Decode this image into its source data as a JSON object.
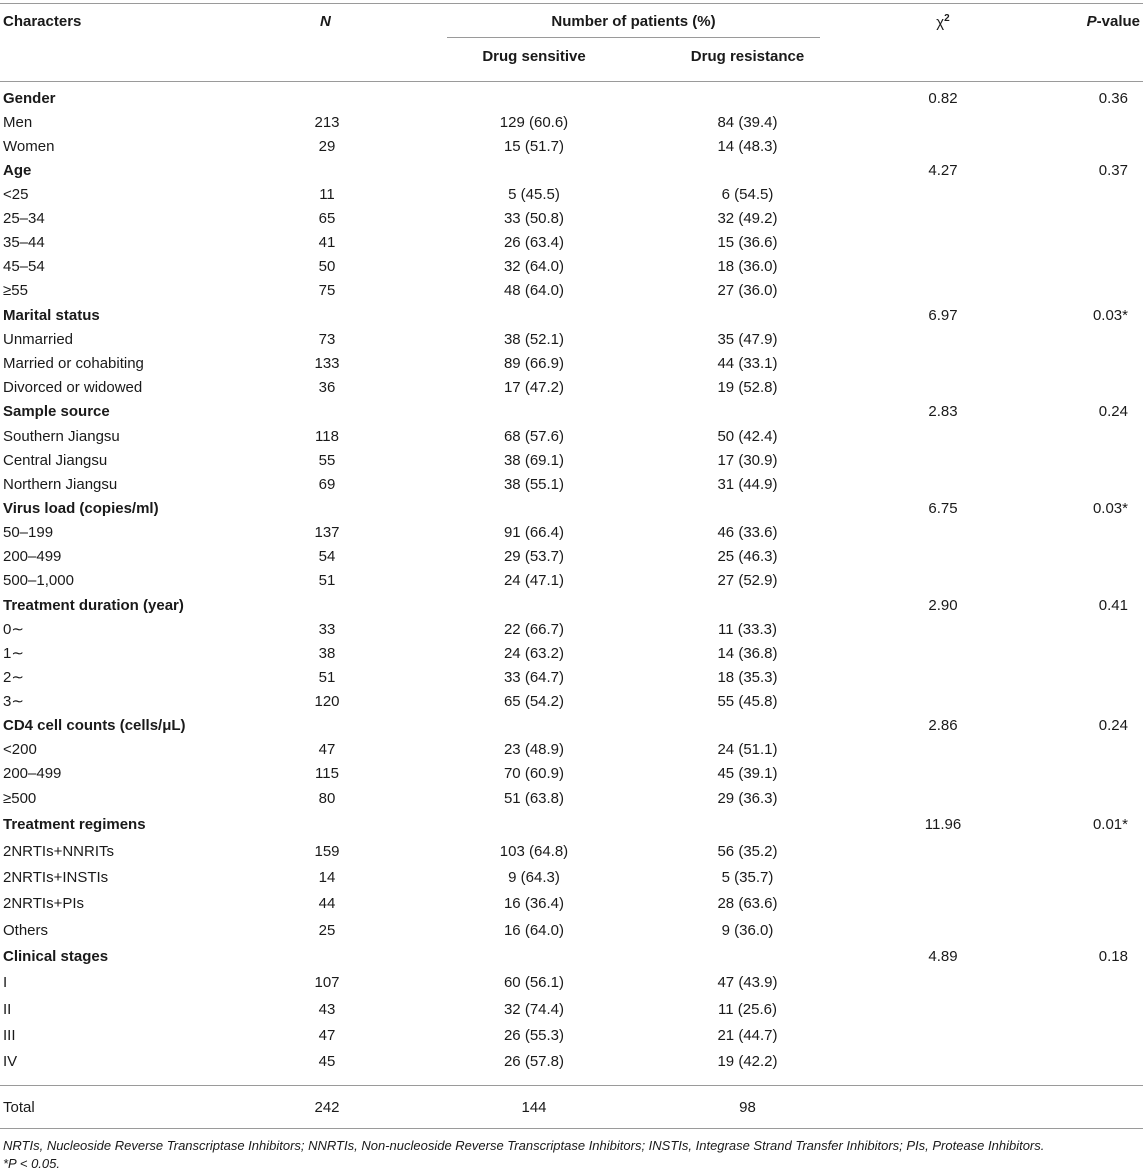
{
  "header": {
    "characters": "Characters",
    "n": "N",
    "group": "Number of patients (%)",
    "sensitive": "Drug sensitive",
    "resistance": "Drug resistance",
    "chi": "χ",
    "chi_sup": "2",
    "pvalue_italic": "P",
    "pvalue_rest": "-value"
  },
  "rows": [
    {
      "type": "group",
      "label": "Gender",
      "n": "",
      "sens": "",
      "res": "",
      "chi": "0.82",
      "p": "0.36"
    },
    {
      "type": "item",
      "label": "Men",
      "n": "213",
      "sens": "129 (60.6)",
      "res": "84 (39.4)",
      "chi": "",
      "p": ""
    },
    {
      "type": "item",
      "label": "Women",
      "n": "29",
      "sens": "15 (51.7)",
      "res": "14 (48.3)",
      "chi": "",
      "p": ""
    },
    {
      "type": "group",
      "label": "Age",
      "n": "",
      "sens": "",
      "res": "",
      "chi": "4.27",
      "p": "0.37"
    },
    {
      "type": "item",
      "label": "<25",
      "n": "11",
      "sens": "5 (45.5)",
      "res": "6 (54.5)",
      "chi": "",
      "p": ""
    },
    {
      "type": "item",
      "label": "25–34",
      "n": "65",
      "sens": "33 (50.8)",
      "res": "32 (49.2)",
      "chi": "",
      "p": ""
    },
    {
      "type": "item",
      "label": "35–44",
      "n": "41",
      "sens": "26 (63.4)",
      "res": "15 (36.6)",
      "chi": "",
      "p": ""
    },
    {
      "type": "item",
      "label": "45–54",
      "n": "50",
      "sens": "32 (64.0)",
      "res": "18 (36.0)",
      "chi": "",
      "p": ""
    },
    {
      "type": "item",
      "label": "≥55",
      "n": "75",
      "sens": "48 (64.0)",
      "res": "27 (36.0)",
      "chi": "",
      "p": ""
    },
    {
      "type": "group",
      "label": "Marital status",
      "n": "",
      "sens": "",
      "res": "",
      "chi": "6.97",
      "p": "0.03*"
    },
    {
      "type": "item",
      "label": "Unmarried",
      "n": "73",
      "sens": "38 (52.1)",
      "res": "35 (47.9)",
      "chi": "",
      "p": ""
    },
    {
      "type": "item",
      "label": "Married or cohabiting",
      "n": "133",
      "sens": "89 (66.9)",
      "res": "44 (33.1)",
      "chi": "",
      "p": ""
    },
    {
      "type": "item",
      "label": "Divorced or widowed",
      "n": "36",
      "sens": "17 (47.2)",
      "res": "19 (52.8)",
      "chi": "",
      "p": ""
    },
    {
      "type": "group",
      "label": "Sample source",
      "n": "",
      "sens": "",
      "res": "",
      "chi": "2.83",
      "p": "0.24"
    },
    {
      "type": "item",
      "label": "Southern Jiangsu",
      "n": "118",
      "sens": "68 (57.6)",
      "res": "50 (42.4)",
      "chi": "",
      "p": ""
    },
    {
      "type": "item",
      "label": "Central Jiangsu",
      "n": "55",
      "sens": "38 (69.1)",
      "res": "17 (30.9)",
      "chi": "",
      "p": ""
    },
    {
      "type": "item",
      "label": "Northern Jiangsu",
      "n": "69",
      "sens": "38 (55.1)",
      "res": "31 (44.9)",
      "chi": "",
      "p": ""
    },
    {
      "type": "group",
      "label": "Virus load (copies/ml)",
      "n": "",
      "sens": "",
      "res": "",
      "chi": "6.75",
      "p": "0.03*"
    },
    {
      "type": "item",
      "label": "50–199",
      "n": "137",
      "sens": "91 (66.4)",
      "res": "46 (33.6)",
      "chi": "",
      "p": ""
    },
    {
      "type": "item",
      "label": "200–499",
      "n": "54",
      "sens": "29 (53.7)",
      "res": "25 (46.3)",
      "chi": "",
      "p": ""
    },
    {
      "type": "item",
      "label": "500–1,000",
      "n": "51",
      "sens": "24 (47.1)",
      "res": "27 (52.9)",
      "chi": "",
      "p": ""
    },
    {
      "type": "group",
      "label": "Treatment duration (year)",
      "n": "",
      "sens": "",
      "res": "",
      "chi": "2.90",
      "p": "0.41"
    },
    {
      "type": "item",
      "label": "0∼",
      "n": "33",
      "sens": "22 (66.7)",
      "res": "11 (33.3)",
      "chi": "",
      "p": ""
    },
    {
      "type": "item",
      "label": "1∼",
      "n": "38",
      "sens": "24 (63.2)",
      "res": "14 (36.8)",
      "chi": "",
      "p": ""
    },
    {
      "type": "item",
      "label": "2∼",
      "n": "51",
      "sens": "33 (64.7)",
      "res": "18 (35.3)",
      "chi": "",
      "p": ""
    },
    {
      "type": "item",
      "label": "3∼",
      "n": "120",
      "sens": "65 (54.2)",
      "res": "55 (45.8)",
      "chi": "",
      "p": ""
    },
    {
      "type": "group",
      "label": "CD4 cell counts (cells/μL)",
      "n": "",
      "sens": "",
      "res": "",
      "chi": "2.86",
      "p": "0.24"
    },
    {
      "type": "item",
      "label": "<200",
      "n": "47",
      "sens": "23 (48.9)",
      "res": "24 (51.1)",
      "chi": "",
      "p": ""
    },
    {
      "type": "item",
      "label": "200–499",
      "n": "115",
      "sens": "70 (60.9)",
      "res": "45 (39.1)",
      "chi": "",
      "p": ""
    },
    {
      "type": "item",
      "label": "≥500",
      "n": "80",
      "sens": "51 (63.8)",
      "res": "29 (36.3)",
      "chi": "",
      "p": ""
    },
    {
      "type": "group",
      "label": "Treatment regimens",
      "n": "",
      "sens": "",
      "res": "",
      "chi": "11.96",
      "p": "0.01*"
    },
    {
      "type": "item",
      "label": "2NRTIs+NNRITs",
      "n": "159",
      "sens": "103 (64.8)",
      "res": "56 (35.2)",
      "chi": "",
      "p": ""
    },
    {
      "type": "item",
      "label": "2NRTIs+INSTIs",
      "n": "14",
      "sens": "9 (64.3)",
      "res": "5 (35.7)",
      "chi": "",
      "p": ""
    },
    {
      "type": "item",
      "label": "2NRTIs+PIs",
      "n": "44",
      "sens": "16 (36.4)",
      "res": "28 (63.6)",
      "chi": "",
      "p": ""
    },
    {
      "type": "item",
      "label": "Others",
      "n": "25",
      "sens": "16 (64.0)",
      "res": "9 (36.0)",
      "chi": "",
      "p": ""
    },
    {
      "type": "group",
      "label": "Clinical stages",
      "n": "",
      "sens": "",
      "res": "",
      "chi": "4.89",
      "p": "0.18"
    },
    {
      "type": "item",
      "label": "I",
      "n": "107",
      "sens": "60 (56.1)",
      "res": "47 (43.9)",
      "chi": "",
      "p": ""
    },
    {
      "type": "item",
      "label": "II",
      "n": "43",
      "sens": "32 (74.4)",
      "res": "11 (25.6)",
      "chi": "",
      "p": ""
    },
    {
      "type": "item",
      "label": "III",
      "n": "47",
      "sens": "26 (55.3)",
      "res": "21 (44.7)",
      "chi": "",
      "p": ""
    },
    {
      "type": "item",
      "label": "IV",
      "n": "45",
      "sens": "26 (57.8)",
      "res": "19 (42.2)",
      "chi": "",
      "p": ""
    }
  ],
  "total": {
    "label": "Total",
    "n": "242",
    "sens": "144",
    "res": "98"
  },
  "footnotes": {
    "abbreviations": "NRTIs, Nucleoside Reverse Transcriptase Inhibitors; NNRTIs, Non-nucleoside Reverse Transcriptase Inhibitors; INSTIs, Integrase Strand Transfer Inhibitors; PIs, Protease Inhibitors.",
    "significance": "*P < 0.05."
  }
}
